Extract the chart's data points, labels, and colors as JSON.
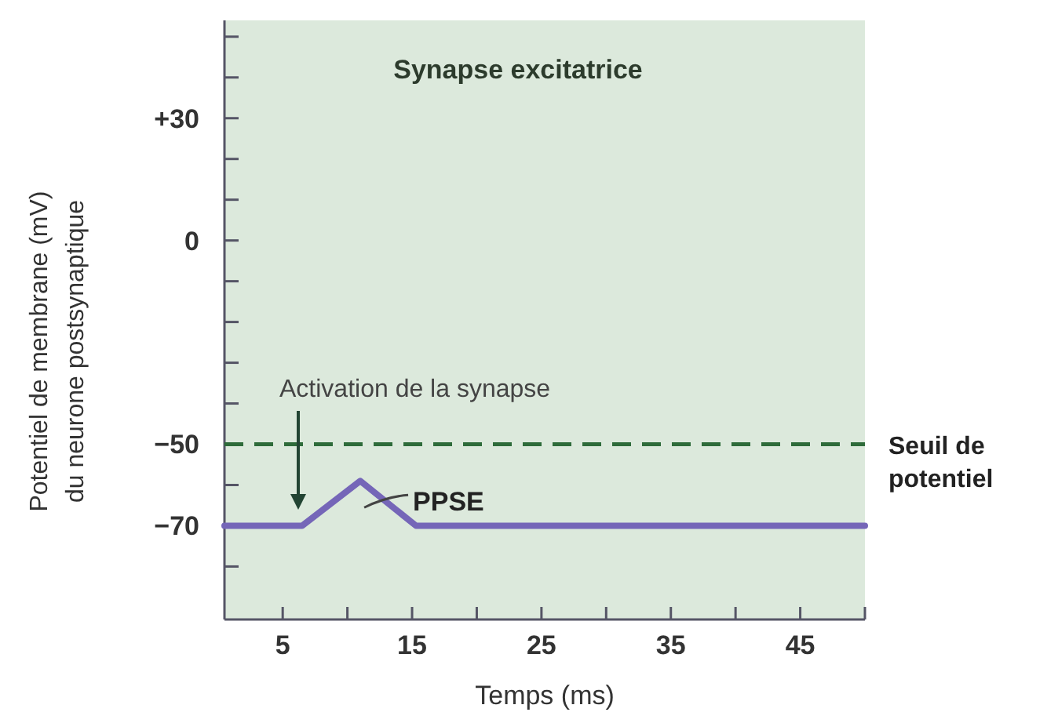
{
  "chart_data": {
    "type": "line",
    "title": "Synapse excitatrice",
    "xlabel": "Temps (ms)",
    "ylabel": "Potentiel de membrane (mV) du neurone postsynaptique",
    "x": [
      0.5,
      6.5,
      11,
      15.3,
      50
    ],
    "series": [
      {
        "color": "#7566b8",
        "values": [
          -70,
          -70,
          -59,
          -70,
          -70
        ]
      }
    ],
    "xlim": [
      0.5,
      50
    ],
    "xticks": [
      5,
      {
        "value": 10,
        "label": null
      },
      15,
      {
        "value": 20,
        "label": null
      },
      25,
      {
        "value": 30,
        "label": null
      },
      35,
      {
        "value": 40,
        "label": null
      },
      45,
      {
        "value": 50,
        "label": null
      }
    ],
    "ylim": [
      -93,
      54
    ],
    "yticks": [
      {
        "value": -80,
        "label": null
      },
      {
        "value": -70,
        "label": "−70"
      },
      {
        "value": -60,
        "label": null
      },
      {
        "value": -50,
        "label": "−50"
      },
      {
        "value": -40,
        "label": null
      },
      {
        "value": -30,
        "label": null
      },
      {
        "value": -20,
        "label": null
      },
      {
        "value": -10,
        "label": null
      },
      0,
      {
        "value": 10,
        "label": null
      },
      {
        "value": 20,
        "label": null
      },
      {
        "value": 30,
        "label": "+30"
      },
      {
        "value": 40,
        "label": null
      },
      {
        "value": 50,
        "label": null
      }
    ],
    "ref_lines": [
      {
        "axis": "y",
        "value": -50,
        "label": "Seuil de potentiel",
        "color": "#2e6b3a",
        "line_style": "dashed"
      }
    ],
    "annotations": [
      "Activation de la synapse",
      {
        "text": "PPSE",
        "x": 13,
        "y": -64
      }
    ],
    "grid": false,
    "marker": "none",
    "line_style": "solid"
  }
}
